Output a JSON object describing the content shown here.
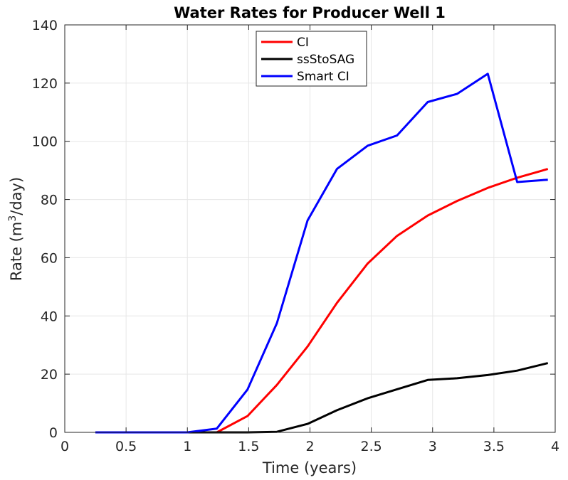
{
  "chart_data": {
    "type": "line",
    "title": "Water Rates for Producer Well 1",
    "xlabel": "Time (years)",
    "ylabel_prefix": "Rate (m",
    "ylabel_sup": "3",
    "ylabel_suffix": "/day)",
    "xlim": [
      0,
      4
    ],
    "ylim": [
      0,
      140
    ],
    "xticks": [
      0,
      0.5,
      1,
      1.5,
      2,
      2.5,
      3,
      3.5,
      4
    ],
    "xtick_labels": [
      "0",
      "0.5",
      "1",
      "1.5",
      "2",
      "2.5",
      "3",
      "3.5",
      "4"
    ],
    "yticks": [
      0,
      20,
      40,
      60,
      80,
      100,
      120,
      140
    ],
    "ytick_labels": [
      "0",
      "20",
      "40",
      "60",
      "80",
      "100",
      "120",
      "140"
    ],
    "grid": true,
    "legend_position": "top-center",
    "series": [
      {
        "name": "CI",
        "color": "#ff0000",
        "x": [
          0.25,
          0.5,
          0.75,
          1.0,
          1.24,
          1.49,
          1.73,
          1.98,
          2.22,
          2.47,
          2.71,
          2.96,
          3.2,
          3.45,
          3.69,
          3.94
        ],
        "values": [
          0,
          0,
          0,
          0,
          0,
          5.6,
          16.3,
          29.5,
          44.5,
          58,
          67.5,
          74.5,
          79.5,
          84,
          87.5,
          90.5
        ]
      },
      {
        "name": "ssStoSAG",
        "color": "#000000",
        "x": [
          0.25,
          0.5,
          0.75,
          1.0,
          1.24,
          1.49,
          1.73,
          1.98,
          2.22,
          2.47,
          2.71,
          2.96,
          3.2,
          3.45,
          3.69,
          3.94
        ],
        "values": [
          0,
          0,
          0,
          0,
          0,
          0,
          0.2,
          2.9,
          7.6,
          11.7,
          14.8,
          18,
          18.6,
          19.7,
          21.2,
          23.8
        ]
      },
      {
        "name": "Smart CI",
        "color": "#0000ff",
        "x": [
          0.25,
          0.5,
          0.75,
          1.0,
          1.24,
          1.49,
          1.73,
          1.98,
          2.22,
          2.47,
          2.71,
          2.96,
          3.2,
          3.45,
          3.69,
          3.94
        ],
        "values": [
          0,
          0,
          0,
          0,
          1.3,
          14.7,
          37.5,
          72.8,
          90.5,
          98.5,
          102,
          113.5,
          116.3,
          123.2,
          86,
          86.8
        ]
      }
    ]
  }
}
